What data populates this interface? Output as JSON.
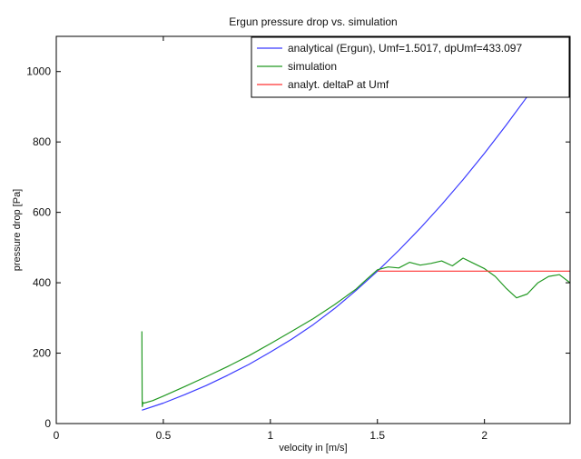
{
  "chart_data": {
    "type": "line",
    "title": "Ergun pressure drop vs. simulation",
    "xlabel": "velocity in [m/s]",
    "ylabel": "pressure drop [Pa]",
    "xlim": [
      0,
      2.4
    ],
    "ylim": [
      0,
      1100
    ],
    "xticks": [
      {
        "value": 0,
        "label": "0"
      },
      {
        "value": 0.5,
        "label": "0.5"
      },
      {
        "value": 1,
        "label": "1"
      },
      {
        "value": 1.5,
        "label": "1.5"
      },
      {
        "value": 2,
        "label": "2"
      }
    ],
    "yticks": [
      {
        "value": 0,
        "label": "0"
      },
      {
        "value": 200,
        "label": "200"
      },
      {
        "value": 400,
        "label": "400"
      },
      {
        "value": 600,
        "label": "600"
      },
      {
        "value": 800,
        "label": "800"
      },
      {
        "value": 1000,
        "label": "1000"
      }
    ],
    "grid": false,
    "legend_position": "top-right",
    "series": [
      {
        "name": "analytical (Ergun), Umf=1.5017, dpUmf=433.097",
        "color": "#3a3aff",
        "x": [
          0.4,
          0.5,
          0.6,
          0.7,
          0.8,
          0.9,
          1.0,
          1.1,
          1.2,
          1.3,
          1.4,
          1.5,
          1.6,
          1.7,
          1.8,
          1.9,
          2.0,
          2.1,
          2.2,
          2.3
        ],
        "y": [
          38,
          58,
          82,
          108,
          137,
          168,
          203,
          240,
          281,
          327,
          378,
          433,
          492,
          555,
          622,
          693,
          768,
          847,
          929,
          1015
        ]
      },
      {
        "name": "simulation",
        "color": "#229922",
        "x": [
          0.4,
          0.401,
          0.402,
          0.405,
          0.41,
          0.45,
          0.5,
          0.6,
          0.7,
          0.8,
          0.9,
          1.0,
          1.1,
          1.2,
          1.3,
          1.4,
          1.45,
          1.5,
          1.55,
          1.6,
          1.65,
          1.7,
          1.75,
          1.8,
          1.85,
          1.9,
          1.95,
          2.0,
          2.05,
          2.1,
          2.15,
          2.2,
          2.25,
          2.3,
          2.35,
          2.4
        ],
        "y": [
          262,
          65,
          48,
          60,
          58,
          65,
          78,
          105,
          133,
          162,
          193,
          227,
          262,
          298,
          338,
          382,
          410,
          437,
          445,
          442,
          458,
          450,
          455,
          462,
          448,
          470,
          455,
          440,
          418,
          385,
          357,
          368,
          400,
          418,
          423,
          400
        ]
      },
      {
        "name": "analyt. deltaP at Umf",
        "color": "#ff3333",
        "x": [
          1.5017,
          2.4
        ],
        "y": [
          433.097,
          433.097
        ]
      }
    ]
  }
}
